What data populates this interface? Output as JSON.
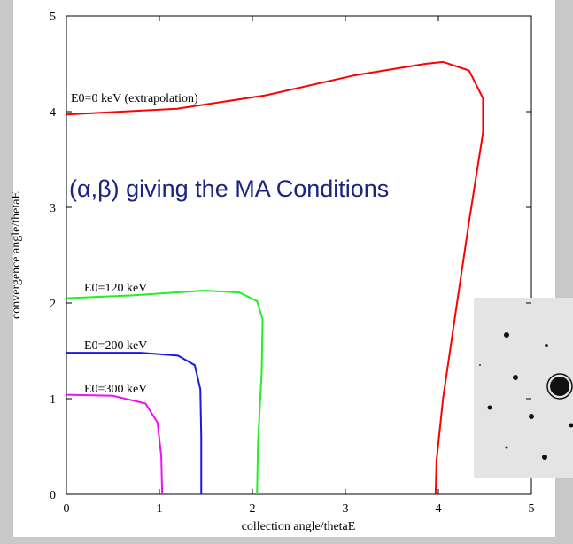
{
  "chart_data": {
    "type": "line",
    "annotation": "(α,β) giving the MA Conditions",
    "x_label": "collection angle/thetaE",
    "y_label": "convergence angle/thetaE",
    "xlim": [
      0,
      5
    ],
    "ylim": [
      0,
      5
    ],
    "xticks": [
      0,
      1,
      2,
      3,
      4,
      5
    ],
    "yticks": [
      0,
      1,
      2,
      3,
      4,
      5
    ],
    "series": [
      {
        "name": "E0=0 keV (extrapolation)",
        "color": "#ff0000",
        "x": [
          0,
          1.19,
          2.14,
          3.1,
          3.86,
          4.05,
          4.33,
          4.48,
          4.48,
          4.33,
          4.19,
          4.05,
          3.98,
          3.97
        ],
        "values": [
          3.97,
          4.03,
          4.17,
          4.38,
          4.5,
          4.52,
          4.43,
          4.14,
          3.78,
          2.85,
          1.93,
          1.0,
          0.35,
          0
        ]
      },
      {
        "name": "E0=120 keV",
        "color": "#22ee22",
        "x": [
          0,
          0.71,
          1.48,
          1.86,
          2.05,
          2.11,
          2.1,
          2.06,
          2.05
        ],
        "values": [
          2.05,
          2.08,
          2.13,
          2.11,
          2.02,
          1.83,
          1.28,
          0.54,
          0
        ]
      },
      {
        "name": "E0=200 keV",
        "color": "#1a1adc",
        "x": [
          0,
          0.8,
          1.2,
          1.38,
          1.44,
          1.45,
          1.45
        ],
        "values": [
          1.48,
          1.48,
          1.45,
          1.35,
          1.1,
          0.6,
          0
        ]
      },
      {
        "name": "E0=300 keV",
        "color": "#ee11ee",
        "x": [
          0,
          0.5,
          0.85,
          0.98,
          1.02,
          1.03
        ],
        "values": [
          1.04,
          1.03,
          0.95,
          0.75,
          0.4,
          0
        ]
      }
    ]
  }
}
